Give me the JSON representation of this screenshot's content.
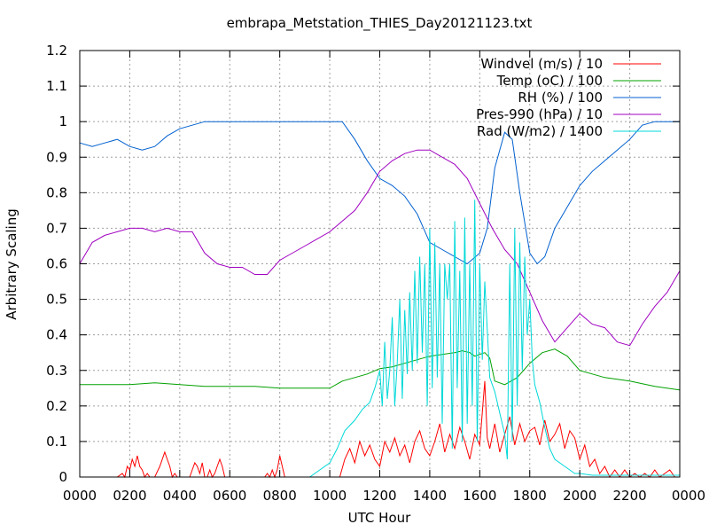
{
  "chart_data": {
    "type": "line",
    "title": "embrapa_Metstation_THIES_Day20121123.txt",
    "xlabel": "UTC Hour",
    "ylabel": "Arbitrary Scaling",
    "xlim": [
      0,
      24
    ],
    "ylim": [
      0,
      1.2
    ],
    "grid": true,
    "legend_position": "top-right",
    "x_ticks": [
      {
        "value": 0,
        "label": "0000"
      },
      {
        "value": 2,
        "label": "0200"
      },
      {
        "value": 4,
        "label": "0400"
      },
      {
        "value": 6,
        "label": "0600"
      },
      {
        "value": 8,
        "label": "0800"
      },
      {
        "value": 10,
        "label": "1000"
      },
      {
        "value": 12,
        "label": "1200"
      },
      {
        "value": 14,
        "label": "1400"
      },
      {
        "value": 16,
        "label": "1600"
      },
      {
        "value": 18,
        "label": "1800"
      },
      {
        "value": 20,
        "label": "2000"
      },
      {
        "value": 22,
        "label": "2200"
      },
      {
        "value": 24,
        "label": "0000"
      }
    ],
    "y_ticks": [
      {
        "value": 0,
        "label": "0"
      },
      {
        "value": 0.1,
        "label": "0.1"
      },
      {
        "value": 0.2,
        "label": "0.2"
      },
      {
        "value": 0.3,
        "label": "0.3"
      },
      {
        "value": 0.4,
        "label": "0.4"
      },
      {
        "value": 0.5,
        "label": "0.5"
      },
      {
        "value": 0.6,
        "label": "0.6"
      },
      {
        "value": 0.7,
        "label": "0.7"
      },
      {
        "value": 0.8,
        "label": "0.8"
      },
      {
        "value": 0.9,
        "label": "0.9"
      },
      {
        "value": 1.0,
        "label": "1"
      },
      {
        "value": 1.1,
        "label": "1.1"
      },
      {
        "value": 1.2,
        "label": "1.2"
      }
    ],
    "series": [
      {
        "name": "Windvel (m/s) / 10",
        "color": "#ff0000",
        "x": [
          0,
          1.5,
          1.7,
          1.8,
          1.9,
          2.0,
          2.1,
          2.2,
          2.3,
          2.4,
          2.5,
          2.6,
          2.7,
          2.8,
          3.0,
          3.2,
          3.4,
          3.5,
          3.6,
          3.7,
          3.8,
          3.9,
          4.0,
          4.2,
          4.4,
          4.5,
          4.6,
          4.7,
          4.8,
          4.9,
          5.0,
          5.1,
          5.2,
          5.3,
          5.4,
          5.5,
          5.6,
          5.7,
          5.8,
          6.0,
          6.5,
          7.0,
          7.4,
          7.5,
          7.6,
          7.7,
          7.8,
          7.9,
          8.0,
          8.1,
          8.2,
          8.4,
          8.6,
          8.8,
          9.0,
          9.2,
          9.4,
          9.6,
          9.8,
          10.0,
          10.2,
          10.4,
          10.6,
          10.8,
          11.0,
          11.2,
          11.4,
          11.6,
          11.8,
          12.0,
          12.2,
          12.4,
          12.6,
          12.8,
          13.0,
          13.2,
          13.4,
          13.6,
          13.8,
          14.0,
          14.2,
          14.4,
          14.6,
          14.8,
          15.0,
          15.2,
          15.4,
          15.6,
          15.8,
          16.0,
          16.2,
          16.3,
          16.4,
          16.6,
          16.8,
          17.0,
          17.2,
          17.4,
          17.6,
          17.8,
          18.0,
          18.2,
          18.4,
          18.6,
          18.8,
          19.0,
          19.2,
          19.4,
          19.6,
          19.8,
          20.0,
          20.2,
          20.4,
          20.6,
          20.8,
          21.0,
          21.2,
          21.4,
          21.6,
          21.8,
          22.0,
          22.2,
          22.4,
          22.6,
          22.8,
          23.0,
          23.2,
          23.4,
          23.6,
          23.8,
          24.0
        ],
        "y": [
          0,
          0,
          0.01,
          0.0,
          0.03,
          0.02,
          0.05,
          0.03,
          0.06,
          0.03,
          0.02,
          0.0,
          0.01,
          0.0,
          0.0,
          0.03,
          0.07,
          0.05,
          0.03,
          0.0,
          0.01,
          0.0,
          0.0,
          0.0,
          0.0,
          0.02,
          0.04,
          0.03,
          0.01,
          0.04,
          0.0,
          0.0,
          0.02,
          0.0,
          0.01,
          0.03,
          0.05,
          0.03,
          0.0,
          0.0,
          0.0,
          0.0,
          0.0,
          0.01,
          0.0,
          0.02,
          0.0,
          0.02,
          0.06,
          0.03,
          0.0,
          0.0,
          0.0,
          0.0,
          0.0,
          0.0,
          0.0,
          0.0,
          0.0,
          0.0,
          0.0,
          0.0,
          0.05,
          0.08,
          0.04,
          0.1,
          0.06,
          0.09,
          0.05,
          0.03,
          0.1,
          0.07,
          0.11,
          0.06,
          0.09,
          0.04,
          0.1,
          0.13,
          0.08,
          0.06,
          0.1,
          0.15,
          0.07,
          0.12,
          0.08,
          0.14,
          0.1,
          0.05,
          0.12,
          0.09,
          0.27,
          0.11,
          0.08,
          0.15,
          0.07,
          0.12,
          0.17,
          0.09,
          0.15,
          0.1,
          0.13,
          0.14,
          0.09,
          0.16,
          0.1,
          0.12,
          0.15,
          0.08,
          0.13,
          0.11,
          0.05,
          0.09,
          0.03,
          0.05,
          0.01,
          0.03,
          0.0,
          0.02,
          0.0,
          0.02,
          0.0,
          0.01,
          0.0,
          0.01,
          0.0,
          0.02,
          0.0,
          0.01,
          0.02,
          0.0,
          0.0
        ]
      },
      {
        "name": "Temp (oC) / 100",
        "color": "#00a000",
        "x": [
          0,
          1,
          2,
          3,
          4,
          5,
          6,
          7,
          8,
          9,
          10,
          10.5,
          11,
          11.5,
          12,
          12.5,
          13,
          13.5,
          14,
          14.5,
          15,
          15.3,
          15.6,
          15.8,
          16.0,
          16.2,
          16.4,
          16.6,
          17,
          17.5,
          18,
          18.5,
          19,
          19.5,
          20,
          21,
          22,
          23,
          24
        ],
        "y": [
          0.26,
          0.26,
          0.26,
          0.265,
          0.26,
          0.255,
          0.255,
          0.255,
          0.25,
          0.25,
          0.25,
          0.27,
          0.28,
          0.29,
          0.305,
          0.31,
          0.32,
          0.33,
          0.34,
          0.345,
          0.35,
          0.355,
          0.35,
          0.34,
          0.345,
          0.35,
          0.335,
          0.27,
          0.26,
          0.28,
          0.32,
          0.35,
          0.36,
          0.34,
          0.3,
          0.28,
          0.27,
          0.255,
          0.245
        ]
      },
      {
        "name": "RH (%) / 100",
        "color": "#0060d0",
        "x": [
          0,
          0.5,
          1,
          1.5,
          2,
          2.5,
          3,
          3.5,
          4,
          4.5,
          5,
          5.5,
          6,
          6.5,
          7,
          8,
          9,
          10,
          10.5,
          11,
          11.5,
          12,
          12.5,
          13,
          13.5,
          14,
          14.5,
          15,
          15.5,
          16,
          16.3,
          16.6,
          17,
          17.3,
          17.6,
          18,
          18.3,
          18.6,
          19,
          19.5,
          20,
          20.5,
          21,
          21.5,
          22,
          22.5,
          23,
          23.5,
          24
        ],
        "y": [
          0.94,
          0.93,
          0.94,
          0.95,
          0.93,
          0.92,
          0.93,
          0.96,
          0.98,
          0.99,
          1.0,
          1.0,
          1.0,
          1.0,
          1.0,
          1.0,
          1.0,
          1.0,
          1.0,
          0.95,
          0.89,
          0.84,
          0.82,
          0.79,
          0.74,
          0.66,
          0.64,
          0.62,
          0.6,
          0.63,
          0.7,
          0.87,
          0.97,
          0.95,
          0.8,
          0.63,
          0.6,
          0.62,
          0.7,
          0.76,
          0.82,
          0.86,
          0.89,
          0.92,
          0.95,
          0.99,
          1.0,
          1.0,
          1.0
        ]
      },
      {
        "name": "Pres-990 (hPa) / 10",
        "color": "#a000c0",
        "x": [
          0,
          0.5,
          1,
          1.5,
          2,
          2.5,
          3,
          3.5,
          4,
          4.5,
          5,
          5.5,
          6,
          6.5,
          7,
          7.5,
          8,
          8.5,
          9,
          9.5,
          10,
          10.5,
          11,
          11.5,
          12,
          12.5,
          13,
          13.5,
          14,
          14.5,
          15,
          15.5,
          16,
          16.5,
          17,
          17.5,
          18,
          18.5,
          19,
          19.5,
          20,
          20.5,
          21,
          21.5,
          22,
          22.5,
          23,
          23.5,
          24
        ],
        "y": [
          0.6,
          0.66,
          0.68,
          0.69,
          0.7,
          0.7,
          0.69,
          0.7,
          0.69,
          0.69,
          0.63,
          0.6,
          0.59,
          0.59,
          0.57,
          0.57,
          0.61,
          0.63,
          0.65,
          0.67,
          0.69,
          0.72,
          0.75,
          0.8,
          0.86,
          0.89,
          0.91,
          0.92,
          0.92,
          0.9,
          0.88,
          0.84,
          0.77,
          0.7,
          0.64,
          0.6,
          0.52,
          0.44,
          0.38,
          0.42,
          0.46,
          0.43,
          0.42,
          0.38,
          0.37,
          0.43,
          0.48,
          0.52,
          0.58
        ]
      },
      {
        "name": "Rad (W/m2) / 1400",
        "color": "#00d8d8",
        "x": [
          0,
          9.2,
          9.6,
          10,
          10.3,
          10.6,
          11,
          11.3,
          11.6,
          11.8,
          12,
          12.1,
          12.2,
          12.3,
          12.4,
          12.5,
          12.6,
          12.7,
          12.8,
          12.9,
          13,
          13.1,
          13.2,
          13.3,
          13.4,
          13.5,
          13.6,
          13.7,
          13.8,
          13.9,
          14,
          14.1,
          14.2,
          14.3,
          14.4,
          14.5,
          14.6,
          14.7,
          14.8,
          14.9,
          15,
          15.1,
          15.2,
          15.3,
          15.4,
          15.5,
          15.6,
          15.7,
          15.8,
          15.9,
          16,
          16.1,
          16.2,
          16.4,
          16.6,
          16.8,
          17,
          17.1,
          17.2,
          17.3,
          17.4,
          17.5,
          17.6,
          17.7,
          17.8,
          17.9,
          18,
          18.1,
          18.2,
          18.4,
          18.6,
          18.8,
          19,
          19.2,
          19.4,
          19.6,
          19.8,
          20,
          20.5,
          21,
          22,
          23,
          24
        ],
        "y": [
          0,
          0,
          0.02,
          0.04,
          0.08,
          0.13,
          0.16,
          0.19,
          0.21,
          0.25,
          0.3,
          0.2,
          0.38,
          0.22,
          0.3,
          0.45,
          0.2,
          0.32,
          0.5,
          0.22,
          0.47,
          0.29,
          0.52,
          0.3,
          0.58,
          0.32,
          0.62,
          0.35,
          0.6,
          0.2,
          0.7,
          0.25,
          0.66,
          0.28,
          0.6,
          0.15,
          0.6,
          0.5,
          0.6,
          0.08,
          0.72,
          0.25,
          0.58,
          0.1,
          0.73,
          0.15,
          0.6,
          0.2,
          0.78,
          0.1,
          0.6,
          0.33,
          0.55,
          0.28,
          0.24,
          0.18,
          0.12,
          0.05,
          0.6,
          0.1,
          0.7,
          0.2,
          0.66,
          0.3,
          0.62,
          0.4,
          0.5,
          0.33,
          0.26,
          0.21,
          0.14,
          0.08,
          0.05,
          0.04,
          0.03,
          0.02,
          0.01,
          0.01,
          0.005,
          0.005,
          0.005,
          0.005,
          0.005
        ]
      }
    ]
  }
}
